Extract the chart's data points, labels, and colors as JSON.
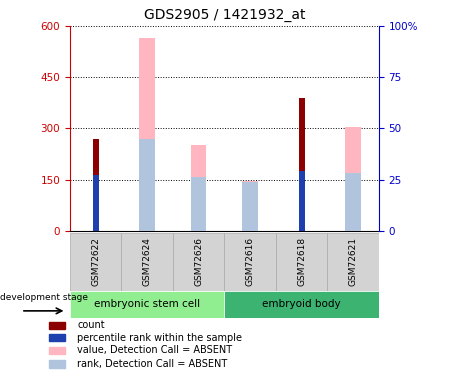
{
  "title": "GDS2905 / 1421932_at",
  "samples": [
    "GSM72622",
    "GSM72624",
    "GSM72626",
    "GSM72616",
    "GSM72618",
    "GSM72621"
  ],
  "group_labels": [
    "embryonic stem cell",
    "embryoid body"
  ],
  "group_colors": [
    "#90ee90",
    "#3cb371"
  ],
  "left_ylim": [
    0,
    600
  ],
  "right_ylim": [
    0,
    100
  ],
  "left_yticks": [
    0,
    150,
    300,
    450,
    600
  ],
  "right_yticks": [
    0,
    25,
    50,
    75,
    100
  ],
  "right_yticklabels": [
    "0",
    "25",
    "50",
    "75",
    "100%"
  ],
  "value_bars_absent": [
    0,
    565,
    250,
    145,
    0,
    305
  ],
  "rank_bars_absent_pct": [
    0,
    45,
    26,
    24,
    0,
    28
  ],
  "count_bars": [
    270,
    0,
    0,
    0,
    390,
    0
  ],
  "percentile_bars_pct": [
    27,
    0,
    0,
    0,
    29,
    0
  ],
  "color_count": "#8b0000",
  "color_percentile": "#1e40af",
  "color_value_absent": "#ffb6c1",
  "color_rank_absent": "#b0c4de",
  "axis_left_color": "#cc0000",
  "axis_right_color": "#0000cc",
  "title_fontsize": 10,
  "development_stage_label": "development stage",
  "legend_items": [
    {
      "label": "count",
      "color": "#8b0000"
    },
    {
      "label": "percentile rank within the sample",
      "color": "#1e40af"
    },
    {
      "label": "value, Detection Call = ABSENT",
      "color": "#ffb6c1"
    },
    {
      "label": "rank, Detection Call = ABSENT",
      "color": "#b0c4de"
    }
  ]
}
